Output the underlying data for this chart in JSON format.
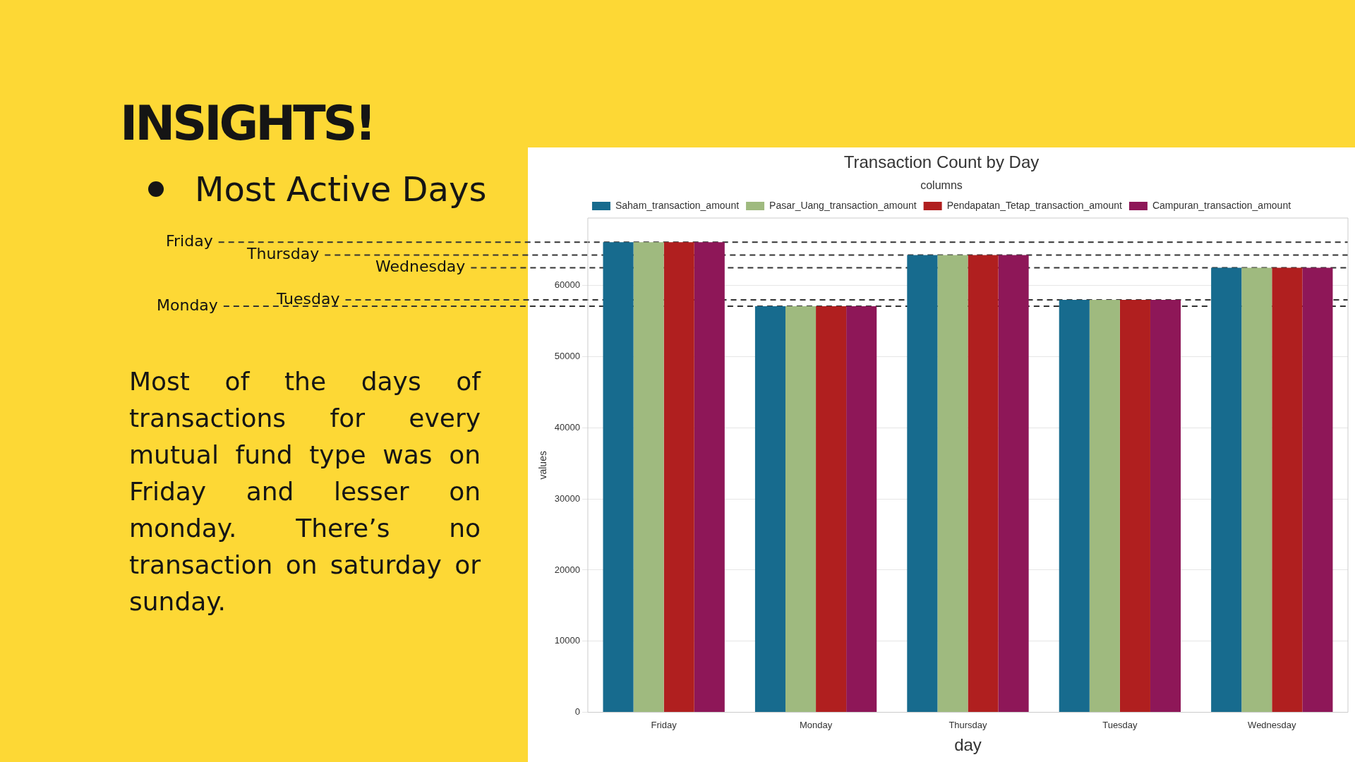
{
  "chart_data": {
    "type": "bar",
    "title": "Transaction Count by Day",
    "categories": [
      "Friday",
      "Monday",
      "Thursday",
      "Tuesday",
      "Wednesday"
    ],
    "series": [
      {
        "name": "Saham_transaction_amount",
        "color": "#176b8e",
        "values": [
          66100,
          57100,
          64300,
          58000,
          62500
        ]
      },
      {
        "name": "Pasar_Uang_transaction_amount",
        "color": "#9fba7f",
        "values": [
          66100,
          57100,
          64300,
          58000,
          62500
        ]
      },
      {
        "name": "Pendapatan_Tetap_transaction_amount",
        "color": "#b01f1f",
        "values": [
          66100,
          57100,
          64300,
          58000,
          62500
        ]
      },
      {
        "name": "Campuran_transaction_amount",
        "color": "#8e1758",
        "values": [
          66100,
          57100,
          64300,
          58000,
          62500
        ]
      }
    ],
    "xlabel": "day",
    "ylabel": "values",
    "legend_title": "columns",
    "legend": "top",
    "ylim": [
      0,
      69500
    ],
    "yticks": [
      0,
      10000,
      20000,
      30000,
      40000,
      50000,
      60000
    ],
    "grid": "y",
    "ref_lines": [
      {
        "axis": "y",
        "value": 66100,
        "label": "Friday",
        "line_style": "dashed",
        "color": "#333333"
      },
      {
        "axis": "y",
        "value": 64300,
        "label": "Thursday",
        "line_style": "dashed",
        "color": "#333333"
      },
      {
        "axis": "y",
        "value": 62500,
        "label": "Wednesday",
        "line_style": "dashed",
        "color": "#333333"
      },
      {
        "axis": "y",
        "value": 58000,
        "label": "Tuesday",
        "line_style": "dashed",
        "color": "#333333"
      },
      {
        "axis": "y",
        "value": 57100,
        "label": "Monday",
        "line_style": "dashed",
        "color": "#333333"
      }
    ],
    "annotations": [
      "INSIGHTS!",
      "Most Active Days",
      "Most of the days of transactions for every mutual fund type was on Friday and lesser on monday. There’s no transaction on saturday or sunday."
    ]
  }
}
